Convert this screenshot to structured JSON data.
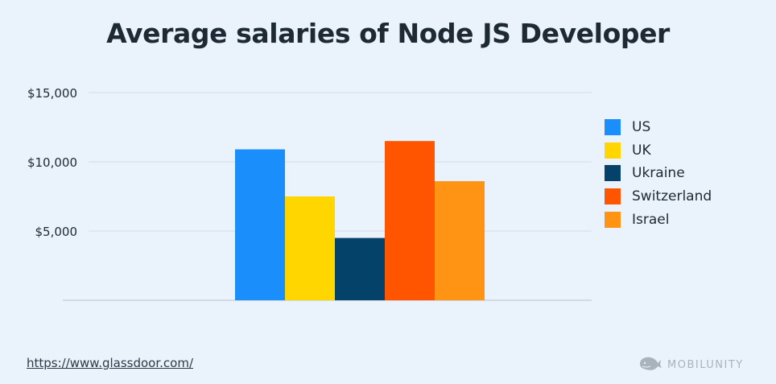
{
  "title": "Average salaries of Node JS Developer",
  "source_link": "https://www.glassdoor.com/",
  "brand": "MOBILUNITY",
  "brand_icon": "whale-icon",
  "chart_data": {
    "type": "bar",
    "title": "Average salaries of Node JS Developer",
    "xlabel": "",
    "ylabel": "",
    "ylim": [
      0,
      15000
    ],
    "yticks": [
      5000,
      10000,
      15000
    ],
    "ytick_labels": [
      "$5,000",
      "$10,000",
      "$15,000"
    ],
    "grid": true,
    "legend_position": "right",
    "categories": [
      "US",
      "UK",
      "Ukraine",
      "Switzerland",
      "Israel"
    ],
    "values": [
      10900,
      7500,
      4500,
      11500,
      8600
    ],
    "colors": [
      "#1a8ffb",
      "#ffd600",
      "#05426a",
      "#ff5400",
      "#ff9314"
    ]
  }
}
